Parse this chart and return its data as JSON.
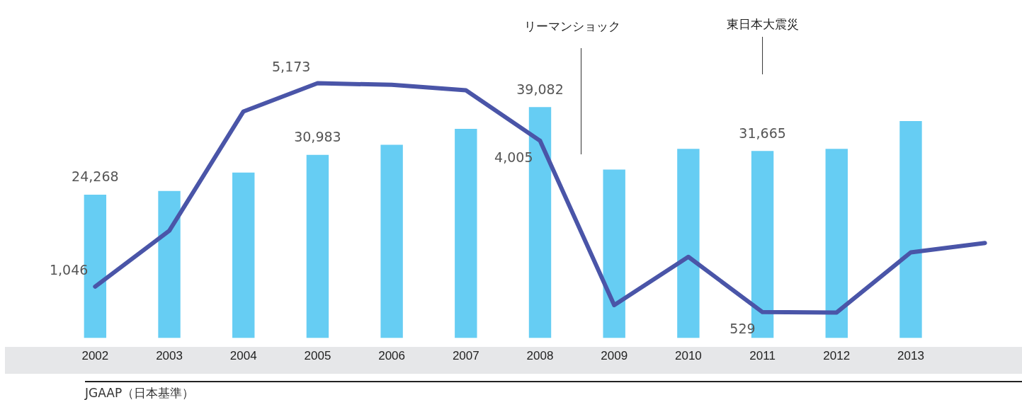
{
  "chart_data": {
    "type": "bar",
    "categories": [
      "2002",
      "2003",
      "2004",
      "2005",
      "2006",
      "2007",
      "2008",
      "2009",
      "2010",
      "2011",
      "2012",
      "2013",
      null
    ],
    "series": [
      {
        "color": "#66cdf3",
        "values": [
          24268,
          24900,
          28000,
          30983,
          32700,
          35400,
          39082,
          28500,
          32000,
          31665,
          32000,
          36700,
          null
        ],
        "value_labels": [
          "24,268",
          null,
          null,
          "30,983",
          null,
          null,
          "39,082",
          null,
          null,
          "31,665",
          null,
          null,
          null
        ]
      },
      {
        "type": "line",
        "axis": "y2",
        "color": "#4a55a8",
        "values": [
          1046,
          2180,
          4600,
          5173,
          5140,
          5030,
          4005,
          670,
          1650,
          529,
          520,
          1740,
          1930
        ],
        "value_labels": [
          "1,046",
          null,
          null,
          "5,173",
          null,
          null,
          "4,005",
          null,
          null,
          "529",
          null,
          null,
          null
        ]
      }
    ],
    "tick_labels": "x",
    "grid": false,
    "legend": false,
    "marker": "none",
    "ref_lines": [
      {
        "axis": "x",
        "value": "2011",
        "label": "東日本大震災"
      }
    ],
    "annotations": [
      "リーマンショック",
      "JGAAP（日本基準）"
    ]
  }
}
